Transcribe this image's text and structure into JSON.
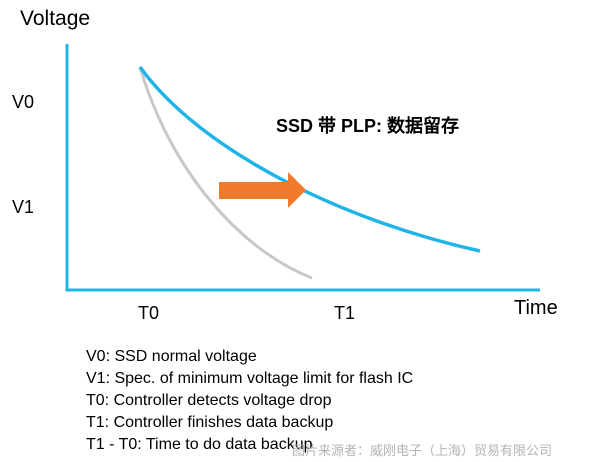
{
  "axes": {
    "y_title": "Voltage",
    "x_title": "Time",
    "y_ticks": [
      "V0",
      "V1"
    ],
    "x_ticks": [
      "T0",
      "T1"
    ]
  },
  "annotation": {
    "title": "SSD 带 PLP: 数据留存"
  },
  "curves": {
    "plp_color": "#1fb4e8",
    "no_plp_color": "#c8c8c8",
    "arrow_color": "#f07a2a",
    "axis_color": "#1fb4e8"
  },
  "legend": [
    "V0: SSD normal voltage",
    "V1: Spec. of minimum voltage limit for flash IC",
    "T0: Controller detects voltage drop",
    "T1: Controller finishes data backup",
    "T1 - T0: Time to do data backup"
  ],
  "watermark": "图片来源者：威刚电子（上海）贸易有限公司"
}
